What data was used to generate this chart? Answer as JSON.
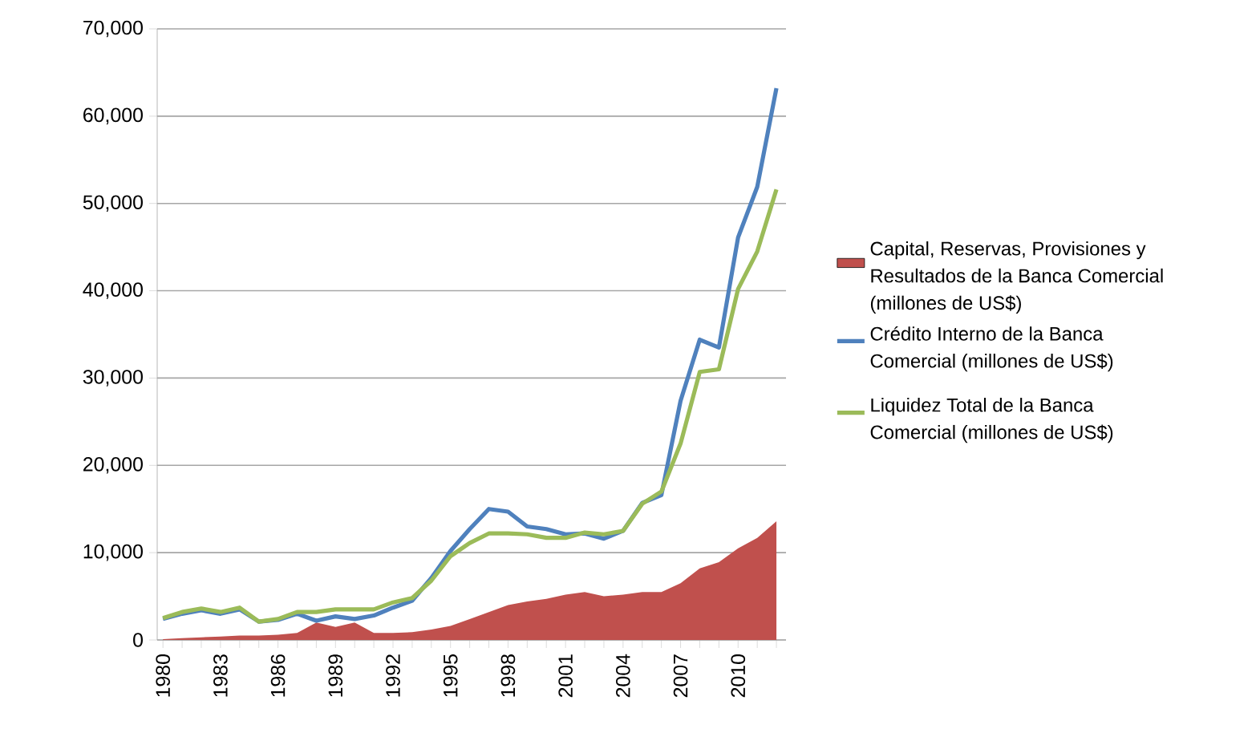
{
  "chart_data": {
    "type": "line",
    "x": [
      1980,
      1981,
      1982,
      1983,
      1984,
      1985,
      1986,
      1987,
      1988,
      1989,
      1990,
      1991,
      1992,
      1993,
      1994,
      1995,
      1996,
      1997,
      1998,
      1999,
      2000,
      2001,
      2002,
      2003,
      2004,
      2005,
      2006,
      2007,
      2008,
      2009,
      2010,
      2011,
      2012
    ],
    "series": [
      {
        "name": "Capital, Reservas, Provisiones y Resultados de la Banca Comercial (millones de US$)",
        "type": "area",
        "color": "#c0504d",
        "values": [
          100,
          200,
          300,
          400,
          500,
          500,
          600,
          800,
          2000,
          1500,
          2000,
          800,
          800,
          900,
          1200,
          1600,
          2400,
          3200,
          4000,
          4400,
          4700,
          5200,
          5500,
          5000,
          5200,
          5500,
          5500,
          6500,
          8200,
          8900,
          10500,
          11700,
          13600
        ]
      },
      {
        "name": "Crédito Interno de la Banca Comercial (millones de US$)",
        "color": "#4f81bd",
        "values": [
          2400,
          3000,
          3400,
          3000,
          3500,
          2100,
          2300,
          3000,
          2200,
          2700,
          2400,
          2800,
          3700,
          4500,
          7100,
          10200,
          12700,
          15000,
          14700,
          13000,
          12700,
          12100,
          12200,
          11600,
          12500,
          15700,
          16600,
          27400,
          34400,
          33500,
          46100,
          51900,
          63200
        ]
      },
      {
        "name": "Liquidez Total de la Banca Comercial (millones de US$)",
        "color": "#9bbb59",
        "values": [
          2500,
          3200,
          3600,
          3200,
          3700,
          2100,
          2400,
          3200,
          3200,
          3500,
          3500,
          3500,
          4300,
          4800,
          6800,
          9600,
          11100,
          12200,
          12200,
          12100,
          11700,
          11700,
          12300,
          12100,
          12500,
          15600,
          17000,
          22500,
          30700,
          31000,
          40200,
          44500,
          51600
        ]
      }
    ],
    "xlim": [
      1979.7,
      2012.5
    ],
    "xticks": [
      1980,
      {
        "value": 1981,
        "label": null
      },
      {
        "value": 1982,
        "label": null
      },
      1983,
      {
        "value": 1984,
        "label": null
      },
      {
        "value": 1985,
        "label": null
      },
      1986,
      {
        "value": 1987,
        "label": null
      },
      {
        "value": 1988,
        "label": null
      },
      1989,
      {
        "value": 1990,
        "label": null
      },
      {
        "value": 1991,
        "label": null
      },
      1992,
      {
        "value": 1993,
        "label": null
      },
      {
        "value": 1994,
        "label": null
      },
      1995,
      {
        "value": 1996,
        "label": null
      },
      {
        "value": 1997,
        "label": null
      },
      1998,
      {
        "value": 1999,
        "label": null
      },
      {
        "value": 2000,
        "label": null
      },
      2001,
      {
        "value": 2002,
        "label": null
      },
      {
        "value": 2003,
        "label": null
      },
      2004,
      {
        "value": 2005,
        "label": null
      },
      {
        "value": 2006,
        "label": null
      },
      2007,
      {
        "value": 2008,
        "label": null
      },
      {
        "value": 2009,
        "label": null
      },
      2010,
      {
        "value": 2011,
        "label": null
      },
      {
        "value": 2012,
        "label": null
      }
    ],
    "ylim": [
      0,
      70000
    ],
    "yticks": [
      0,
      {
        "value": 10000,
        "label": "10,000"
      },
      {
        "value": 20000,
        "label": "20,000"
      },
      {
        "value": 30000,
        "label": "30,000"
      },
      {
        "value": 40000,
        "label": "40,000"
      },
      {
        "value": 50000,
        "label": "50,000"
      },
      {
        "value": 60000,
        "label": "60,000"
      },
      {
        "value": 70000,
        "label": "70,000"
      }
    ],
    "grid": "y",
    "legend": "right"
  }
}
